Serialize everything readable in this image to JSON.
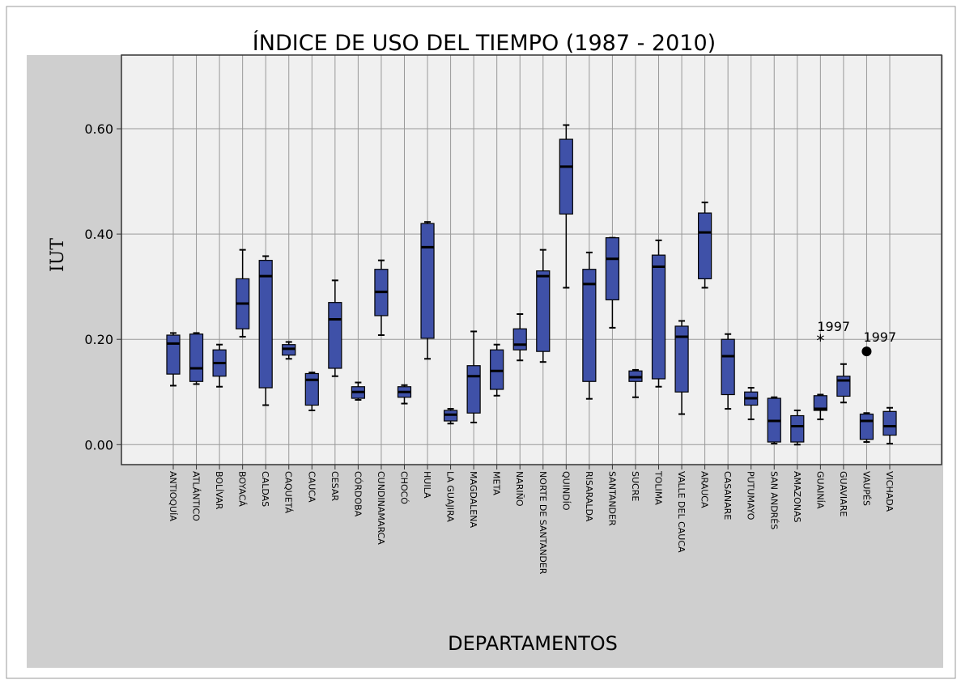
{
  "chart_data": {
    "type": "boxplot",
    "title": "ÍNDICE DE USO DEL TIEMPO (1987 - 2010)",
    "y_label": "IUT",
    "x_label": "DEPARTAMENTOS",
    "categories": [
      "ANTIOQUÍA",
      "ATLÁNTICO",
      "BOLÍVAR",
      "BOYACÁ",
      "CALDAS",
      "CAQUETÁ",
      "CAUCA",
      "CESAR",
      "CÓRDOBA",
      "CUNDINAMARCA",
      "CHOCÓ",
      "HUILA",
      "LA GUAJIRA",
      "MAGDALENA",
      "META",
      "NARIÑO",
      "NORTE DE SANTANDER",
      "QUINDÍO",
      "RISARALDA",
      "SANTANDER",
      "SUCRE",
      "TOLIMA",
      "VALLE DEL CAUCA",
      "ARAUCA",
      "CASANARE",
      "PUTUMAYO",
      "SAN ANDRÉS",
      "AMAZONAS",
      "GUAINÍA",
      "GUAVIARE",
      "VAUPÉS",
      "VICHADA"
    ],
    "color": "#3f51a8",
    "min": [
      0.112,
      0.115,
      0.11,
      0.205,
      0.075,
      0.163,
      0.065,
      0.13,
      0.085,
      0.208,
      0.078,
      0.163,
      0.04,
      0.042,
      0.093,
      0.16,
      0.157,
      0.298,
      0.087,
      0.222,
      0.09,
      0.11,
      0.058,
      0.298,
      0.068,
      0.048,
      0.002,
      0.0,
      0.048,
      0.08,
      0.005,
      0.002
    ],
    "q1": [
      0.134,
      0.12,
      0.13,
      0.22,
      0.108,
      0.17,
      0.075,
      0.145,
      0.088,
      0.245,
      0.09,
      0.202,
      0.045,
      0.06,
      0.105,
      0.18,
      0.177,
      0.438,
      0.12,
      0.275,
      0.12,
      0.125,
      0.1,
      0.315,
      0.095,
      0.075,
      0.005,
      0.005,
      0.065,
      0.092,
      0.01,
      0.018
    ],
    "median": [
      0.192,
      0.145,
      0.155,
      0.268,
      0.32,
      0.182,
      0.123,
      0.238,
      0.1,
      0.29,
      0.1,
      0.375,
      0.057,
      0.13,
      0.14,
      0.19,
      0.32,
      0.528,
      0.305,
      0.353,
      0.128,
      0.338,
      0.205,
      0.403,
      0.168,
      0.088,
      0.045,
      0.035,
      0.068,
      0.122,
      0.045,
      0.035
    ],
    "q3": [
      0.208,
      0.21,
      0.18,
      0.315,
      0.35,
      0.19,
      0.135,
      0.27,
      0.11,
      0.333,
      0.11,
      0.42,
      0.065,
      0.15,
      0.18,
      0.22,
      0.33,
      0.58,
      0.333,
      0.393,
      0.14,
      0.36,
      0.225,
      0.44,
      0.2,
      0.1,
      0.088,
      0.055,
      0.093,
      0.13,
      0.058,
      0.063
    ],
    "max": [
      0.212,
      0.212,
      0.19,
      0.37,
      0.358,
      0.195,
      0.137,
      0.312,
      0.118,
      0.35,
      0.113,
      0.423,
      0.068,
      0.215,
      0.19,
      0.248,
      0.37,
      0.607,
      0.365,
      0.393,
      0.142,
      0.388,
      0.235,
      0.46,
      0.21,
      0.108,
      0.09,
      0.065,
      0.095,
      0.153,
      0.06,
      0.07
    ],
    "outliers": [
      {
        "category": "GUAINÍA",
        "value": 0.197,
        "label": "1997",
        "marker": "star"
      },
      {
        "category": "VAUPÉS",
        "value": 0.177,
        "label": "1997",
        "marker": "circle"
      }
    ],
    "ylim": [
      -0.038,
      0.74
    ],
    "yticks": [
      {
        "value": 0,
        "label": "0.00"
      },
      {
        "value": 0.2,
        "label": "0.20"
      },
      {
        "value": 0.4,
        "label": "0.40"
      },
      {
        "value": 0.6,
        "label": "0.60"
      }
    ],
    "grid": true
  }
}
